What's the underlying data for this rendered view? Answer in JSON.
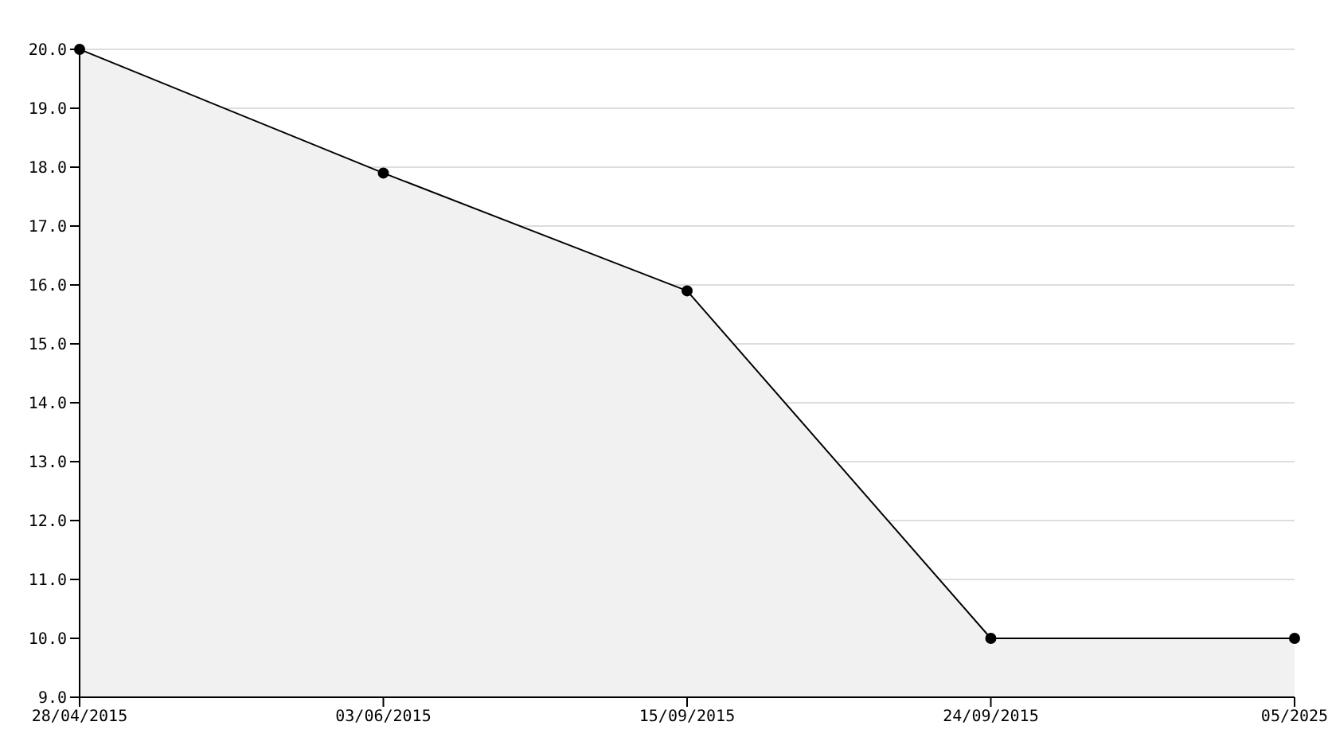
{
  "chart_data": {
    "type": "area",
    "categories": [
      "28/04/2015",
      "03/06/2015",
      "15/09/2015",
      "24/09/2015",
      "05/2025"
    ],
    "series": [
      {
        "color": "#000000",
        "values": [
          20.0,
          17.9,
          15.9,
          10.0,
          10.0
        ]
      }
    ],
    "ylim": [
      9,
      20
    ],
    "yticks": [
      {
        "value": 9,
        "label": "9.0"
      },
      {
        "value": 10,
        "label": "10.0"
      },
      {
        "value": 11,
        "label": "11.0"
      },
      {
        "value": 12,
        "label": "12.0"
      },
      {
        "value": 13,
        "label": "13.0"
      },
      {
        "value": 14,
        "label": "14.0"
      },
      {
        "value": 15,
        "label": "15.0"
      },
      {
        "value": 16,
        "label": "16.0"
      },
      {
        "value": 17,
        "label": "17.0"
      },
      {
        "value": 18,
        "label": "18.0"
      },
      {
        "value": 19,
        "label": "19.0"
      },
      {
        "value": 20,
        "label": "20.0"
      }
    ],
    "grid": "y",
    "marker": "circle",
    "legend": false
  }
}
